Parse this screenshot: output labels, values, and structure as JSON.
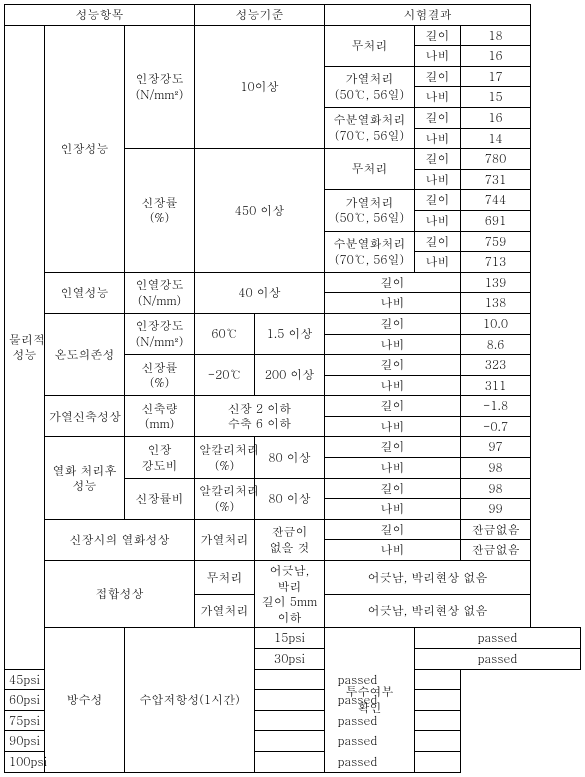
{
  "headers": {
    "perf_item": "성능항목",
    "perf_std": "성능기준",
    "test_result": "시험결과"
  },
  "cat1": {
    "physical": "물리적\n성능",
    "waterproof": "방수성"
  },
  "cat2": {
    "tensile_perf": "인장성능",
    "tear_perf": "인열성능",
    "temp_dep": "온도의존성",
    "heat_shrink": "가열신축성상",
    "post_aging": "열화 처리후\n성능",
    "aging_elong": "신장시의 열화성상",
    "joint_perf": "접합성상",
    "hydro": "수압저항성(1시간)"
  },
  "cat3": {
    "tensile_strength": "인장강도\n(N/mm²)",
    "elongation": "신장률\n(%)",
    "tear_strength": "인열강도\n(N/mm)",
    "tensile_strength2": "인장강도\n(N/mm²)",
    "elongation2": "신장률\n(%)",
    "shrinkage": "신축량\n(mm)",
    "tensile_ratio": "인장\n강도비",
    "elong_ratio": "신장률비",
    "alkali": "알칼리처리\n(%)"
  },
  "std": {
    "ten_or_more": "10이상",
    "four_fifty": "450 이상",
    "forty": "40 이상",
    "sixty_c": "60℃",
    "one_five": "1.5 이상",
    "neg_twenty": "-20℃",
    "two_hundred": "200 이상",
    "shrink_std": "신장 2 이하\n수축 6 이하",
    "eighty": "80 이상",
    "heat_treat": "가열처리",
    "no_crack": "잔금이 없을 것",
    "no_treat": "무처리",
    "joint_std": "어긋남, 박리\n길이 5mm 이하",
    "perm_check": "투수여부\n확인"
  },
  "treatments": {
    "no_treat": "무처리",
    "heat_50": "가열처리\n(50℃, 56일)",
    "water_70": "수분열화처리\n(70℃, 56일)",
    "heat_treat_only": "가열처리"
  },
  "dir": {
    "len": "길이",
    "wid": "나비"
  },
  "values": {
    "r1_l": "18",
    "r1_w": "16",
    "r2_l": "17",
    "r2_w": "15",
    "r3_l": "16",
    "r3_w": "14",
    "r4_l": "780",
    "r4_w": "731",
    "r5_l": "744",
    "r5_w": "691",
    "r6_l": "759",
    "r6_w": "713",
    "r7_l": "139",
    "r7_w": "138",
    "r8_l": "10.0",
    "r8_w": "8.6",
    "r9_l": "323",
    "r9_w": "311",
    "r10_l": "-1.8",
    "r10_w": "-0.7",
    "r11_l": "97",
    "r11_w": "98",
    "r12_l": "98",
    "r12_w": "99",
    "r13_l": "잔금없음",
    "r13_w": "잔금없음",
    "joint1": "어긋남, 박리현상 없음",
    "joint2": "어긋남, 박리현상 없음",
    "passed": "passed"
  },
  "psi": {
    "p15": "15psi",
    "p30": "30psi",
    "p45": "45psi",
    "p60": "60psi",
    "p75": "75psi",
    "p90": "90psi",
    "p100": "100psi"
  }
}
